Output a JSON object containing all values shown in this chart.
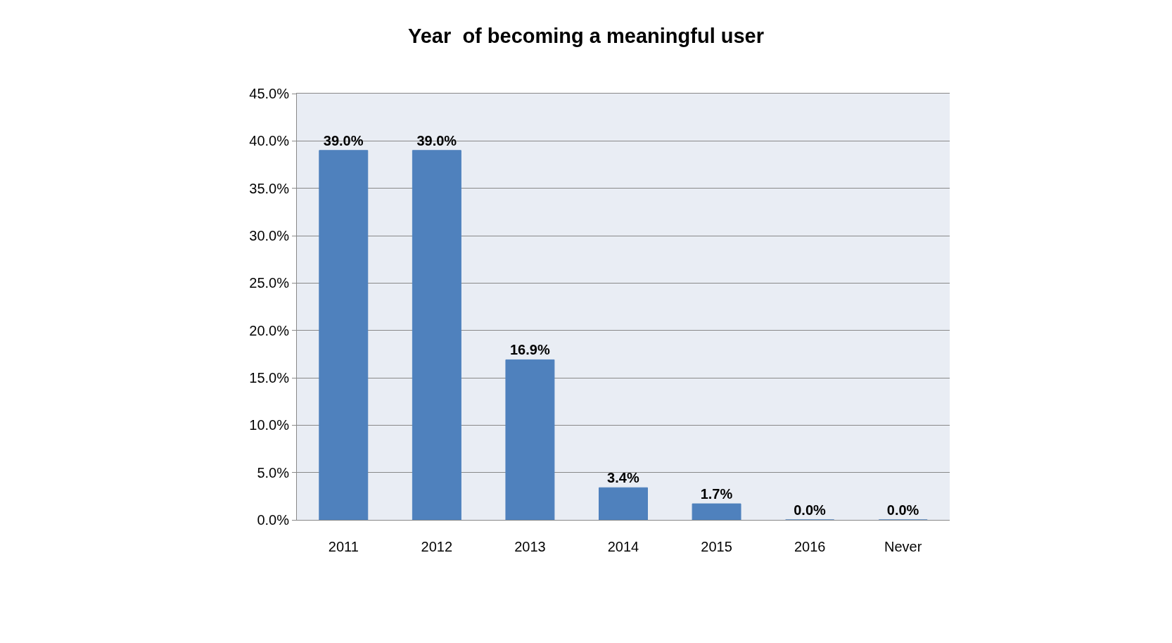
{
  "chart_data": {
    "type": "bar",
    "title": "Year  of becoming a meaningful user",
    "categories": [
      "2011",
      "2012",
      "2013",
      "2014",
      "2015",
      "2016",
      "Never"
    ],
    "values": [
      39.0,
      39.0,
      16.9,
      3.4,
      1.7,
      0.0,
      0.0
    ],
    "value_labels": [
      "39.0%",
      "39.0%",
      "16.9%",
      "3.4%",
      "1.7%",
      "0.0%",
      "0.0%"
    ],
    "color": "#4f81bd",
    "ylim": [
      0,
      45
    ],
    "yticks": [
      {
        "value": 0,
        "label": "0.0%"
      },
      {
        "value": 5,
        "label": "5.0%"
      },
      {
        "value": 10,
        "label": "10.0%"
      },
      {
        "value": 15,
        "label": "15.0%"
      },
      {
        "value": 20,
        "label": "20.0%"
      },
      {
        "value": 25,
        "label": "25.0%"
      },
      {
        "value": 30,
        "label": "30.0%"
      },
      {
        "value": 35,
        "label": "35.0%"
      },
      {
        "value": 40,
        "label": "40.0%"
      },
      {
        "value": 45,
        "label": "45.0%"
      }
    ],
    "grid": "y",
    "legend": false
  }
}
